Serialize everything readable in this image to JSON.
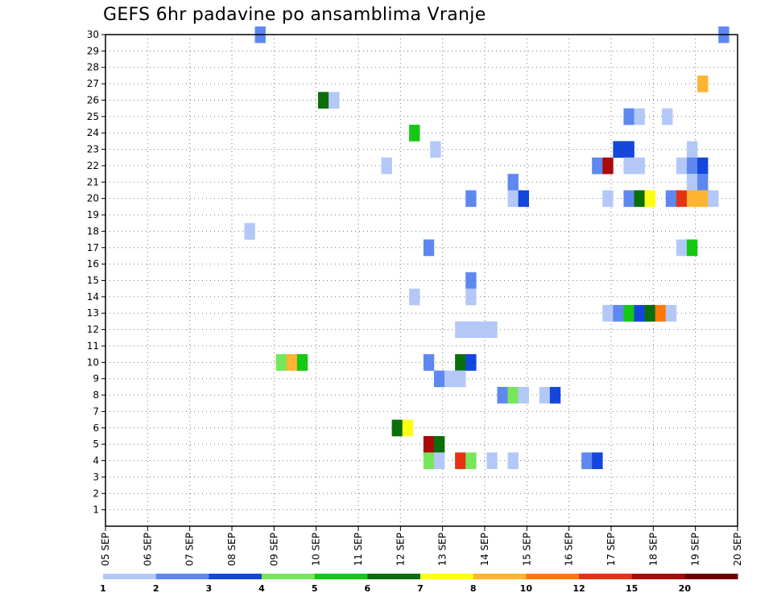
{
  "chart_data": {
    "type": "heatmap",
    "title": "GEFS 6hr padavine po ansamblima Vranje",
    "x_tick_labels": [
      "05 SEP",
      "06 SEP",
      "07 SEP",
      "08 SEP",
      "09 SEP",
      "10 SEP",
      "11 SEP",
      "12 SEP",
      "13 SEP",
      "14 SEP",
      "15 SEP",
      "16 SEP",
      "17 SEP",
      "18 SEP",
      "19 SEP",
      "20 SEP"
    ],
    "y_tick_labels": [
      "1",
      "2",
      "3",
      "4",
      "5",
      "6",
      "7",
      "8",
      "9",
      "10",
      "11",
      "12",
      "13",
      "14",
      "15",
      "16",
      "17",
      "18",
      "19",
      "20",
      "21",
      "22",
      "23",
      "24",
      "25",
      "26",
      "27",
      "28",
      "29",
      "30"
    ],
    "xlim_days": [
      5,
      20
    ],
    "ylim": [
      0,
      30
    ],
    "grid": true,
    "legend": {
      "position": "bottom",
      "labels": [
        "1",
        "2",
        "3",
        "4",
        "5",
        "6",
        "7",
        "8",
        "10",
        "12",
        "15",
        "20"
      ],
      "colors": [
        "#b4c8f8",
        "#5e88f0",
        "#1446dc",
        "#78e65a",
        "#14c814",
        "#0a6e0a",
        "#ffff14",
        "#ffb432",
        "#ff780a",
        "#e63214",
        "#aa0a0a",
        "#6e0000"
      ]
    },
    "cells": [
      {
        "day": 8.67,
        "member": 30,
        "level": 1
      },
      {
        "day": 19.67,
        "member": 30,
        "level": 1
      },
      {
        "day": 19.17,
        "member": 27,
        "level": 7
      },
      {
        "day": 10.17,
        "member": 26,
        "level": 5
      },
      {
        "day": 10.42,
        "member": 26,
        "level": 0
      },
      {
        "day": 17.42,
        "member": 25,
        "level": 1
      },
      {
        "day": 17.67,
        "member": 25,
        "level": 0
      },
      {
        "day": 18.33,
        "member": 25,
        "level": 0
      },
      {
        "day": 12.33,
        "member": 24,
        "level": 4
      },
      {
        "day": 12.83,
        "member": 23,
        "level": 0
      },
      {
        "day": 17.17,
        "member": 23,
        "level": 2
      },
      {
        "day": 17.42,
        "member": 23,
        "level": 2
      },
      {
        "day": 18.92,
        "member": 23,
        "level": 0
      },
      {
        "day": 11.67,
        "member": 22,
        "level": 0
      },
      {
        "day": 14.67,
        "member": 21,
        "level": 1
      },
      {
        "day": 16.67,
        "member": 22,
        "level": 1
      },
      {
        "day": 16.92,
        "member": 22,
        "level": 10
      },
      {
        "day": 17.42,
        "member": 22,
        "level": 0
      },
      {
        "day": 17.67,
        "member": 22,
        "level": 0
      },
      {
        "day": 18.67,
        "member": 22,
        "level": 0
      },
      {
        "day": 18.92,
        "member": 22,
        "level": 1
      },
      {
        "day": 19.17,
        "member": 22,
        "level": 2
      },
      {
        "day": 18.92,
        "member": 21,
        "level": 0
      },
      {
        "day": 19.17,
        "member": 21,
        "level": 1
      },
      {
        "day": 13.67,
        "member": 20,
        "level": 1
      },
      {
        "day": 14.67,
        "member": 20,
        "level": 0
      },
      {
        "day": 14.92,
        "member": 20,
        "level": 2
      },
      {
        "day": 16.92,
        "member": 20,
        "level": 0
      },
      {
        "day": 17.42,
        "member": 20,
        "level": 1
      },
      {
        "day": 17.67,
        "member": 20,
        "level": 5
      },
      {
        "day": 17.92,
        "member": 20,
        "level": 6
      },
      {
        "day": 18.42,
        "member": 20,
        "level": 1
      },
      {
        "day": 18.67,
        "member": 20,
        "level": 9
      },
      {
        "day": 18.92,
        "member": 20,
        "level": 7
      },
      {
        "day": 19.17,
        "member": 20,
        "level": 7
      },
      {
        "day": 19.42,
        "member": 20,
        "level": 0
      },
      {
        "day": 8.42,
        "member": 18,
        "level": 0
      },
      {
        "day": 12.67,
        "member": 17,
        "level": 1
      },
      {
        "day": 18.67,
        "member": 17,
        "level": 0
      },
      {
        "day": 18.92,
        "member": 17,
        "level": 4
      },
      {
        "day": 13.67,
        "member": 15,
        "level": 1
      },
      {
        "day": 13.67,
        "member": 14,
        "level": 0
      },
      {
        "day": 12.33,
        "member": 14,
        "level": 0
      },
      {
        "day": 13.42,
        "member": 12,
        "level": 0
      },
      {
        "day": 13.67,
        "member": 12,
        "level": 0
      },
      {
        "day": 13.92,
        "member": 12,
        "level": 0
      },
      {
        "day": 14.17,
        "member": 12,
        "level": 0
      },
      {
        "day": 16.92,
        "member": 13,
        "level": 0
      },
      {
        "day": 17.17,
        "member": 13,
        "level": 1
      },
      {
        "day": 17.42,
        "member": 13,
        "level": 4
      },
      {
        "day": 17.67,
        "member": 13,
        "level": 2
      },
      {
        "day": 17.92,
        "member": 13,
        "level": 5
      },
      {
        "day": 18.17,
        "member": 13,
        "level": 8
      },
      {
        "day": 18.42,
        "member": 13,
        "level": 0
      },
      {
        "day": 9.17,
        "member": 10,
        "level": 3
      },
      {
        "day": 9.42,
        "member": 10,
        "level": 7
      },
      {
        "day": 9.67,
        "member": 10,
        "level": 4
      },
      {
        "day": 12.67,
        "member": 10,
        "level": 1
      },
      {
        "day": 13.42,
        "member": 10,
        "level": 5
      },
      {
        "day": 13.67,
        "member": 10,
        "level": 2
      },
      {
        "day": 12.92,
        "member": 9,
        "level": 1
      },
      {
        "day": 13.17,
        "member": 9,
        "level": 0
      },
      {
        "day": 13.42,
        "member": 9,
        "level": 0
      },
      {
        "day": 14.42,
        "member": 8,
        "level": 1
      },
      {
        "day": 14.67,
        "member": 8,
        "level": 3
      },
      {
        "day": 14.92,
        "member": 8,
        "level": 0
      },
      {
        "day": 15.42,
        "member": 8,
        "level": 0
      },
      {
        "day": 15.67,
        "member": 8,
        "level": 2
      },
      {
        "day": 11.92,
        "member": 6,
        "level": 5
      },
      {
        "day": 12.17,
        "member": 6,
        "level": 6
      },
      {
        "day": 12.67,
        "member": 5,
        "level": 10
      },
      {
        "day": 12.92,
        "member": 5,
        "level": 5
      },
      {
        "day": 12.67,
        "member": 4,
        "level": 3
      },
      {
        "day": 12.92,
        "member": 4,
        "level": 0
      },
      {
        "day": 13.42,
        "member": 4,
        "level": 9
      },
      {
        "day": 13.67,
        "member": 4,
        "level": 3
      },
      {
        "day": 14.17,
        "member": 4,
        "level": 0
      },
      {
        "day": 14.67,
        "member": 4,
        "level": 0
      },
      {
        "day": 16.42,
        "member": 4,
        "level": 1
      },
      {
        "day": 16.67,
        "member": 4,
        "level": 2
      }
    ]
  }
}
